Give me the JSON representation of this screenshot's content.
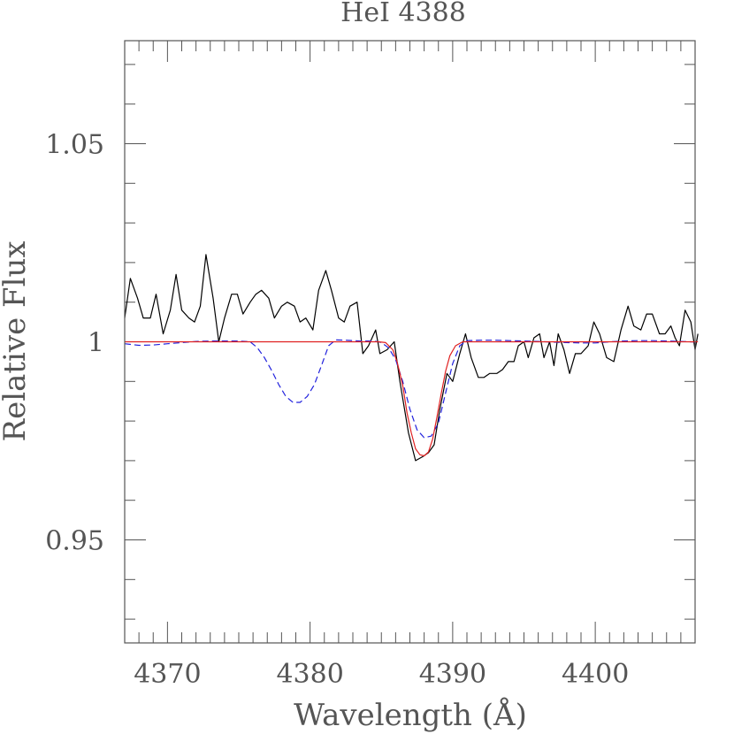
{
  "chart_data": {
    "type": "line",
    "title": "HeI 4388",
    "xlabel": "Wavelength (Å)",
    "ylabel": "Relative Flux",
    "xlim": [
      4367,
      4407
    ],
    "ylim": [
      0.924,
      1.076
    ],
    "x_ticks": [
      4370,
      4380,
      4390,
      4400
    ],
    "x_tick_labels": [
      "4370",
      "4380",
      "4390",
      "4400"
    ],
    "y_ticks": [
      0.95,
      1.0,
      1.05
    ],
    "y_tick_labels": [
      "0.95",
      "1",
      "1.05"
    ],
    "x_minor_step": 1,
    "y_minor_step": 0.01,
    "grid": false,
    "legend": "none",
    "series": [
      {
        "style": "solid",
        "color": "#000000",
        "points": [
          [
            4367.0,
            1.006
          ],
          [
            4367.4,
            1.016
          ],
          [
            4367.9,
            1.011
          ],
          [
            4368.3,
            1.006
          ],
          [
            4368.8,
            1.006
          ],
          [
            4369.2,
            1.012
          ],
          [
            4369.7,
            1.002
          ],
          [
            4370.2,
            1.008
          ],
          [
            4370.6,
            1.017
          ],
          [
            4371.0,
            1.008
          ],
          [
            4371.5,
            1.006
          ],
          [
            4371.9,
            1.005
          ],
          [
            4372.3,
            1.009
          ],
          [
            4372.7,
            1.022
          ],
          [
            4373.2,
            1.011
          ],
          [
            4373.6,
            1.0
          ],
          [
            4374.0,
            1.006
          ],
          [
            4374.5,
            1.012
          ],
          [
            4374.9,
            1.012
          ],
          [
            4375.3,
            1.007
          ],
          [
            4375.8,
            1.01
          ],
          [
            4376.2,
            1.012
          ],
          [
            4376.6,
            1.013
          ],
          [
            4377.1,
            1.011
          ],
          [
            4377.5,
            1.006
          ],
          [
            4378.0,
            1.009
          ],
          [
            4378.4,
            1.01
          ],
          [
            4378.9,
            1.009
          ],
          [
            4379.3,
            1.005
          ],
          [
            4379.7,
            1.006
          ],
          [
            4380.2,
            1.003
          ],
          [
            4380.6,
            1.013
          ],
          [
            4381.1,
            1.018
          ],
          [
            4381.5,
            1.013
          ],
          [
            4382.0,
            1.006
          ],
          [
            4382.4,
            1.005
          ],
          [
            4382.8,
            1.009
          ],
          [
            4383.3,
            1.01
          ],
          [
            4383.7,
            0.997
          ],
          [
            4384.1,
            0.999
          ],
          [
            4384.6,
            1.003
          ],
          [
            4384.9,
            0.997
          ],
          [
            4385.4,
            0.998
          ],
          [
            4385.9,
            1.0
          ],
          [
            4386.3,
            0.99
          ],
          [
            4386.9,
            0.977
          ],
          [
            4387.4,
            0.97
          ],
          [
            4387.9,
            0.971
          ],
          [
            4388.3,
            0.972
          ],
          [
            4388.7,
            0.974
          ],
          [
            4389.1,
            0.983
          ],
          [
            4389.6,
            0.992
          ],
          [
            4390.0,
            0.99
          ],
          [
            4390.5,
            0.997
          ],
          [
            4390.9,
            1.002
          ],
          [
            4391.3,
            0.996
          ],
          [
            4391.8,
            0.991
          ],
          [
            4392.2,
            0.991
          ],
          [
            4392.6,
            0.992
          ],
          [
            4393.1,
            0.992
          ],
          [
            4393.5,
            0.993
          ],
          [
            4393.9,
            0.995
          ],
          [
            4394.3,
            0.995
          ],
          [
            4394.6,
            0.999
          ],
          [
            4395.0,
            1.0
          ],
          [
            4395.3,
            0.996
          ],
          [
            4395.7,
            1.001
          ],
          [
            4396.1,
            1.002
          ],
          [
            4396.4,
            0.996
          ],
          [
            4396.8,
            1.0
          ],
          [
            4397.1,
            0.994
          ],
          [
            4397.4,
            1.002
          ],
          [
            4397.8,
            0.998
          ],
          [
            4398.2,
            0.992
          ],
          [
            4398.6,
            0.997
          ],
          [
            4399.0,
            0.997
          ],
          [
            4399.5,
            0.999
          ],
          [
            4399.9,
            1.005
          ],
          [
            4400.3,
            1.002
          ],
          [
            4400.8,
            0.996
          ],
          [
            4401.3,
            0.995
          ],
          [
            4401.8,
            1.003
          ],
          [
            4402.3,
            1.009
          ],
          [
            4402.7,
            1.004
          ],
          [
            4403.2,
            1.003
          ],
          [
            4403.6,
            1.007
          ],
          [
            4404.0,
            1.007
          ],
          [
            4404.5,
            1.002
          ],
          [
            4404.9,
            1.002
          ],
          [
            4405.3,
            1.004
          ],
          [
            4405.6,
            1.001
          ],
          [
            4405.9,
            0.999
          ],
          [
            4406.3,
            1.008
          ],
          [
            4406.7,
            1.005
          ],
          [
            4407.0,
            0.998
          ],
          [
            4407.2,
            1.002
          ]
        ]
      },
      {
        "style": "dashed",
        "color": "#2222dd",
        "points": [
          [
            4367.0,
            0.9995
          ],
          [
            4368.0,
            0.9991
          ],
          [
            4369.0,
            0.9992
          ],
          [
            4370.0,
            0.9995
          ],
          [
            4371.0,
            0.9998
          ],
          [
            4372.0,
            1.0001
          ],
          [
            4373.0,
            1.0002
          ],
          [
            4374.0,
            1.0002
          ],
          [
            4375.0,
            1.0002
          ],
          [
            4375.8,
            1.0
          ],
          [
            4376.3,
            0.9985
          ],
          [
            4376.8,
            0.996
          ],
          [
            4377.3,
            0.9928
          ],
          [
            4377.8,
            0.9892
          ],
          [
            4378.3,
            0.9862
          ],
          [
            4378.8,
            0.9847
          ],
          [
            4379.3,
            0.9847
          ],
          [
            4379.8,
            0.9862
          ],
          [
            4380.3,
            0.9892
          ],
          [
            4380.8,
            0.994
          ],
          [
            4381.3,
            0.999
          ],
          [
            4381.8,
            1.0005
          ],
          [
            4382.5,
            1.0004
          ],
          [
            4383.5,
            1.0002
          ],
          [
            4384.5,
            1.0002
          ],
          [
            4385.0,
            0.9998
          ],
          [
            4385.5,
            0.9985
          ],
          [
            4386.0,
            0.9955
          ],
          [
            4386.5,
            0.99
          ],
          [
            4387.0,
            0.983
          ],
          [
            4387.5,
            0.9778
          ],
          [
            4388.0,
            0.9758
          ],
          [
            4388.5,
            0.9762
          ],
          [
            4389.0,
            0.9795
          ],
          [
            4389.5,
            0.987
          ],
          [
            4390.0,
            0.9945
          ],
          [
            4390.5,
            0.999
          ],
          [
            4391.0,
            1.0003
          ],
          [
            4392.0,
            1.0004
          ],
          [
            4393.0,
            1.0004
          ],
          [
            4394.0,
            1.0003
          ],
          [
            4395.0,
            1.0002
          ],
          [
            4396.0,
            1.0001
          ],
          [
            4397.0,
            0.9999
          ],
          [
            4398.0,
            0.9998
          ],
          [
            4399.0,
            0.9997
          ],
          [
            4400.0,
            0.9997
          ],
          [
            4401.0,
            1.0
          ],
          [
            4402.0,
            1.0002
          ],
          [
            4403.0,
            1.0003
          ],
          [
            4404.0,
            1.0003
          ],
          [
            4405.0,
            1.0002
          ],
          [
            4406.0,
            1.0001
          ],
          [
            4407.2,
            0.9999
          ]
        ]
      },
      {
        "style": "solid",
        "color": "#e02020",
        "points": [
          [
            4367.0,
            1.0
          ],
          [
            4384.8,
            1.0
          ],
          [
            4385.3,
            0.9998
          ],
          [
            4385.8,
            0.998
          ],
          [
            4386.1,
            0.995
          ],
          [
            4386.5,
            0.989
          ],
          [
            4386.8,
            0.982
          ],
          [
            4387.1,
            0.977
          ],
          [
            4387.4,
            0.973
          ],
          [
            4387.7,
            0.9715
          ],
          [
            4388.0,
            0.9712
          ],
          [
            4388.3,
            0.9722
          ],
          [
            4388.6,
            0.9755
          ],
          [
            4388.9,
            0.981
          ],
          [
            4389.2,
            0.987
          ],
          [
            4389.5,
            0.9925
          ],
          [
            4389.8,
            0.9965
          ],
          [
            4390.2,
            0.999
          ],
          [
            4390.7,
            1.0
          ],
          [
            4407.2,
            1.0
          ]
        ]
      }
    ]
  }
}
